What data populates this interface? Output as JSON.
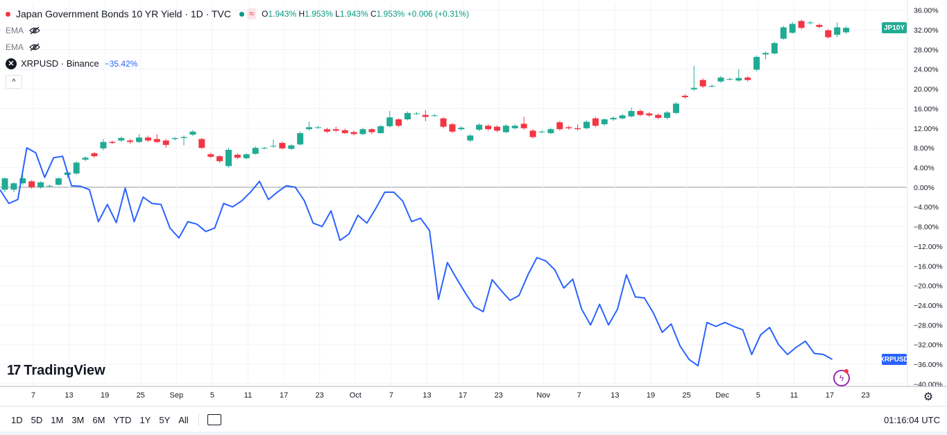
{
  "header": {
    "title": "Japan Government Bonds 10 YR Yield · 1D · TVC",
    "wave_glyph": "≈",
    "ohlc": {
      "o_label": "O",
      "o": "1.943%",
      "h_label": "H",
      "h": "1.953%",
      "l_label": "L",
      "l": "1.943%",
      "c_label": "C",
      "c": "1.953%",
      "change": "+0.006 (+0.31%)"
    },
    "ema1": "EMA",
    "ema2": "EMA",
    "compare_symbol": "XRPUSD · Binance",
    "compare_value": "−35.42%",
    "compare_icon_glyph": "✕",
    "collapse_glyph": "^"
  },
  "badges": {
    "jp10y": "JP10Y",
    "xrpusd": "XRPUSD"
  },
  "colors": {
    "up": "#22ab94",
    "down": "#f23645",
    "line": "#2962ff",
    "grid": "#f0f3fa",
    "axis_text": "#131722"
  },
  "branding": {
    "logo_mark": "17",
    "logo_text": "TradingView"
  },
  "bottom": {
    "ranges": [
      "1D",
      "5D",
      "1M",
      "3M",
      "6M",
      "YTD",
      "1Y",
      "5Y",
      "All"
    ],
    "clock": "01:16:04 UTC",
    "gear_glyph": "⚙",
    "flash_glyph": "ϟ"
  },
  "chart_data": {
    "type": "line",
    "title": "",
    "ylabel": "",
    "xlabel": "",
    "yaxis": {
      "unit": "%",
      "ticks": [
        36,
        32,
        28,
        24,
        20,
        16,
        12,
        8,
        4,
        0,
        -4,
        -8,
        -12,
        -16,
        -20,
        -24,
        -28,
        -32,
        -36,
        -40
      ],
      "ylim": [
        -40.5,
        37.5
      ],
      "zero_line": true
    },
    "xaxis": {
      "labels": [
        "7",
        "13",
        "19",
        "25",
        "Sep",
        "5",
        "11",
        "17",
        "23",
        "Oct",
        "7",
        "13",
        "17",
        "23",
        "Nov",
        "7",
        "13",
        "19",
        "25",
        "Dec",
        "5",
        "11",
        "17",
        "23"
      ],
      "label_bar_index": [
        1,
        5,
        9,
        13,
        17,
        21,
        25,
        29,
        33,
        37,
        41,
        45,
        49,
        53,
        58,
        62,
        66,
        70,
        74,
        78,
        82,
        86,
        90,
        94
      ],
      "range_bars": [
        0,
        96
      ]
    },
    "series": [
      {
        "name": "JP10Y",
        "kind": "candlestick",
        "candles_pct": [
          [
            -0.5,
            1.8,
            -1.0,
            2.0
          ],
          [
            -0.5,
            0.8,
            -1.0,
            1.0
          ],
          [
            0.8,
            1.8,
            0.5,
            2.5
          ],
          [
            1.2,
            0.0,
            -0.3,
            1.5
          ],
          [
            0.0,
            1.0,
            -0.3,
            1.2
          ],
          [
            0.3,
            0.3,
            0.0,
            0.5
          ],
          [
            0.5,
            1.8,
            0.3,
            2.0
          ],
          [
            2.5,
            3.0,
            1.8,
            3.3
          ],
          [
            2.8,
            5.0,
            2.5,
            5.3
          ],
          [
            5.6,
            6.0,
            5.3,
            6.3
          ],
          [
            6.9,
            6.3,
            6.0,
            7.2
          ],
          [
            7.9,
            9.2,
            7.5,
            9.8
          ],
          [
            9.2,
            9.0,
            8.8,
            9.5
          ],
          [
            9.5,
            10.0,
            9.2,
            10.3
          ],
          [
            9.5,
            9.2,
            8.8,
            9.8
          ],
          [
            9.2,
            10.1,
            9.0,
            10.8
          ],
          [
            10.1,
            9.5,
            9.2,
            10.5
          ],
          [
            9.8,
            9.2,
            9.0,
            10.8
          ],
          [
            9.5,
            8.6,
            8.0,
            9.8
          ],
          [
            9.8,
            10.0,
            9.5,
            10.2
          ],
          [
            10.0,
            10.2,
            8.5,
            10.5
          ],
          [
            10.7,
            11.3,
            10.4,
            11.6
          ],
          [
            9.8,
            8.0,
            7.8,
            10.0
          ],
          [
            6.7,
            6.2,
            5.9,
            7.0
          ],
          [
            6.3,
            5.3,
            5.0,
            6.5
          ],
          [
            4.3,
            7.6,
            4.0,
            8.0
          ],
          [
            6.6,
            6.0,
            5.7,
            6.9
          ],
          [
            5.9,
            6.7,
            5.7,
            6.9
          ],
          [
            6.8,
            8.0,
            6.6,
            8.3
          ],
          [
            8.0,
            8.0,
            7.7,
            8.2
          ],
          [
            8.4,
            8.4,
            8.1,
            9.7
          ],
          [
            9.0,
            7.9,
            7.7,
            9.3
          ],
          [
            7.8,
            8.5,
            7.6,
            8.8
          ],
          [
            8.7,
            11.0,
            8.5,
            11.3
          ],
          [
            11.8,
            12.2,
            11.5,
            13.3
          ],
          [
            12.2,
            12.2,
            11.9,
            12.5
          ],
          [
            11.8,
            11.3,
            11.0,
            12.1
          ],
          [
            11.8,
            11.5,
            11.2,
            12.3
          ],
          [
            11.6,
            11.0,
            10.8,
            11.9
          ],
          [
            11.2,
            10.8,
            10.5,
            11.5
          ],
          [
            10.8,
            11.8,
            10.6,
            12.1
          ],
          [
            11.8,
            11.2,
            10.8,
            12.0
          ],
          [
            11.0,
            12.4,
            10.9,
            12.7
          ],
          [
            12.4,
            14.2,
            12.2,
            15.5
          ],
          [
            13.8,
            12.5,
            12.2,
            14.0
          ],
          [
            13.8,
            15.1,
            13.6,
            15.4
          ],
          [
            15.0,
            15.0,
            14.7,
            15.3
          ],
          [
            14.7,
            14.3,
            13.4,
            15.7
          ],
          [
            14.6,
            14.6,
            14.3,
            14.9
          ],
          [
            14.0,
            12.3,
            12.0,
            14.3
          ],
          [
            12.8,
            11.3,
            11.0,
            13.1
          ],
          [
            11.8,
            12.1,
            11.5,
            12.4
          ],
          [
            9.5,
            10.5,
            9.2,
            10.8
          ],
          [
            11.7,
            12.7,
            11.4,
            13.0
          ],
          [
            12.5,
            11.8,
            11.5,
            12.8
          ],
          [
            12.3,
            11.5,
            11.2,
            12.6
          ],
          [
            11.2,
            12.5,
            11.0,
            12.8
          ],
          [
            12.0,
            12.5,
            11.8,
            12.8
          ],
          [
            12.9,
            12.0,
            11.7,
            14.3
          ],
          [
            11.5,
            10.2,
            9.9,
            11.8
          ],
          [
            11.3,
            11.3,
            11.0,
            11.6
          ],
          [
            11.0,
            11.8,
            10.8,
            12.1
          ],
          [
            13.2,
            11.8,
            11.5,
            13.5
          ],
          [
            12.2,
            12.0,
            11.7,
            12.5
          ],
          [
            12.0,
            11.8,
            11.5,
            12.8
          ],
          [
            12.0,
            13.3,
            11.8,
            13.6
          ],
          [
            14.0,
            12.5,
            12.2,
            14.3
          ],
          [
            12.8,
            13.8,
            12.5,
            14.0
          ],
          [
            13.8,
            14.1,
            13.5,
            14.4
          ],
          [
            14.0,
            14.6,
            13.8,
            14.9
          ],
          [
            14.4,
            15.5,
            14.2,
            16.2
          ],
          [
            15.5,
            14.7,
            14.4,
            15.8
          ],
          [
            15.0,
            14.6,
            14.3,
            15.3
          ],
          [
            14.7,
            14.1,
            13.8,
            15.0
          ],
          [
            14.1,
            15.2,
            13.8,
            15.5
          ],
          [
            15.1,
            17.0,
            14.9,
            17.3
          ],
          [
            18.6,
            18.3,
            18.0,
            18.9
          ],
          [
            19.9,
            20.2,
            19.6,
            24.7
          ],
          [
            21.8,
            20.5,
            20.2,
            22.1
          ],
          [
            20.6,
            20.6,
            20.3,
            20.9
          ],
          [
            21.5,
            22.3,
            21.2,
            22.6
          ],
          [
            22.0,
            22.0,
            21.7,
            22.3
          ],
          [
            21.7,
            22.2,
            21.4,
            24.0
          ],
          [
            22.3,
            21.8,
            21.5,
            22.6
          ],
          [
            23.9,
            26.5,
            23.6,
            26.8
          ],
          [
            27.0,
            27.3,
            26.0,
            27.6
          ],
          [
            27.2,
            29.3,
            27.0,
            29.6
          ],
          [
            30.2,
            32.5,
            30.0,
            32.8
          ],
          [
            31.4,
            33.2,
            31.2,
            33.6
          ],
          [
            33.8,
            32.4,
            32.1,
            34.1
          ],
          [
            33.4,
            33.5,
            33.1,
            33.8
          ],
          [
            33.0,
            32.6,
            32.3,
            33.3
          ],
          [
            31.9,
            30.5,
            30.2,
            32.2
          ],
          [
            31.0,
            32.5,
            30.5,
            33.5
          ],
          [
            31.5,
            32.4,
            31.2,
            32.7
          ]
        ]
      },
      {
        "name": "XRPUSD",
        "kind": "line",
        "values": [
          -0.5,
          -3.3,
          -2.5,
          8.0,
          7.0,
          2.0,
          6.0,
          6.3,
          0.3,
          0.2,
          -0.5,
          -7.0,
          -3.5,
          -7.2,
          -0.2,
          -7.0,
          -2.0,
          -3.3,
          -3.5,
          -8.3,
          -10.3,
          -7.0,
          -7.5,
          -9.0,
          -8.3,
          -3.3,
          -4.0,
          -2.8,
          -1.0,
          1.2,
          -2.5,
          -1.0,
          0.3,
          0.0,
          -2.7,
          -7.3,
          -8.0,
          -4.8,
          -10.8,
          -9.5,
          -5.7,
          -7.3,
          -4.3,
          -1.0,
          -1.0,
          -2.8,
          -7.0,
          -6.3,
          -8.8,
          -22.8,
          -15.3,
          -18.5,
          -21.5,
          -24.3,
          -25.3,
          -18.8,
          -21.0,
          -23.0,
          -22.0,
          -17.8,
          -14.3,
          -15.0,
          -16.8,
          -20.5,
          -18.7,
          -24.8,
          -28.0,
          -23.8,
          -28.0,
          -24.8,
          -17.8,
          -22.3,
          -22.5,
          -25.5,
          -29.5,
          -27.8,
          -32.3,
          -35.0,
          -36.3,
          -27.5,
          -28.3,
          -27.5,
          -28.3,
          -29.0,
          -34.0,
          -30.0,
          -28.5,
          -32.0,
          -34.0,
          -32.5,
          -31.3,
          -33.8,
          -34.0,
          -35.0
        ]
      }
    ],
    "legend": "top-left",
    "grid": true
  }
}
